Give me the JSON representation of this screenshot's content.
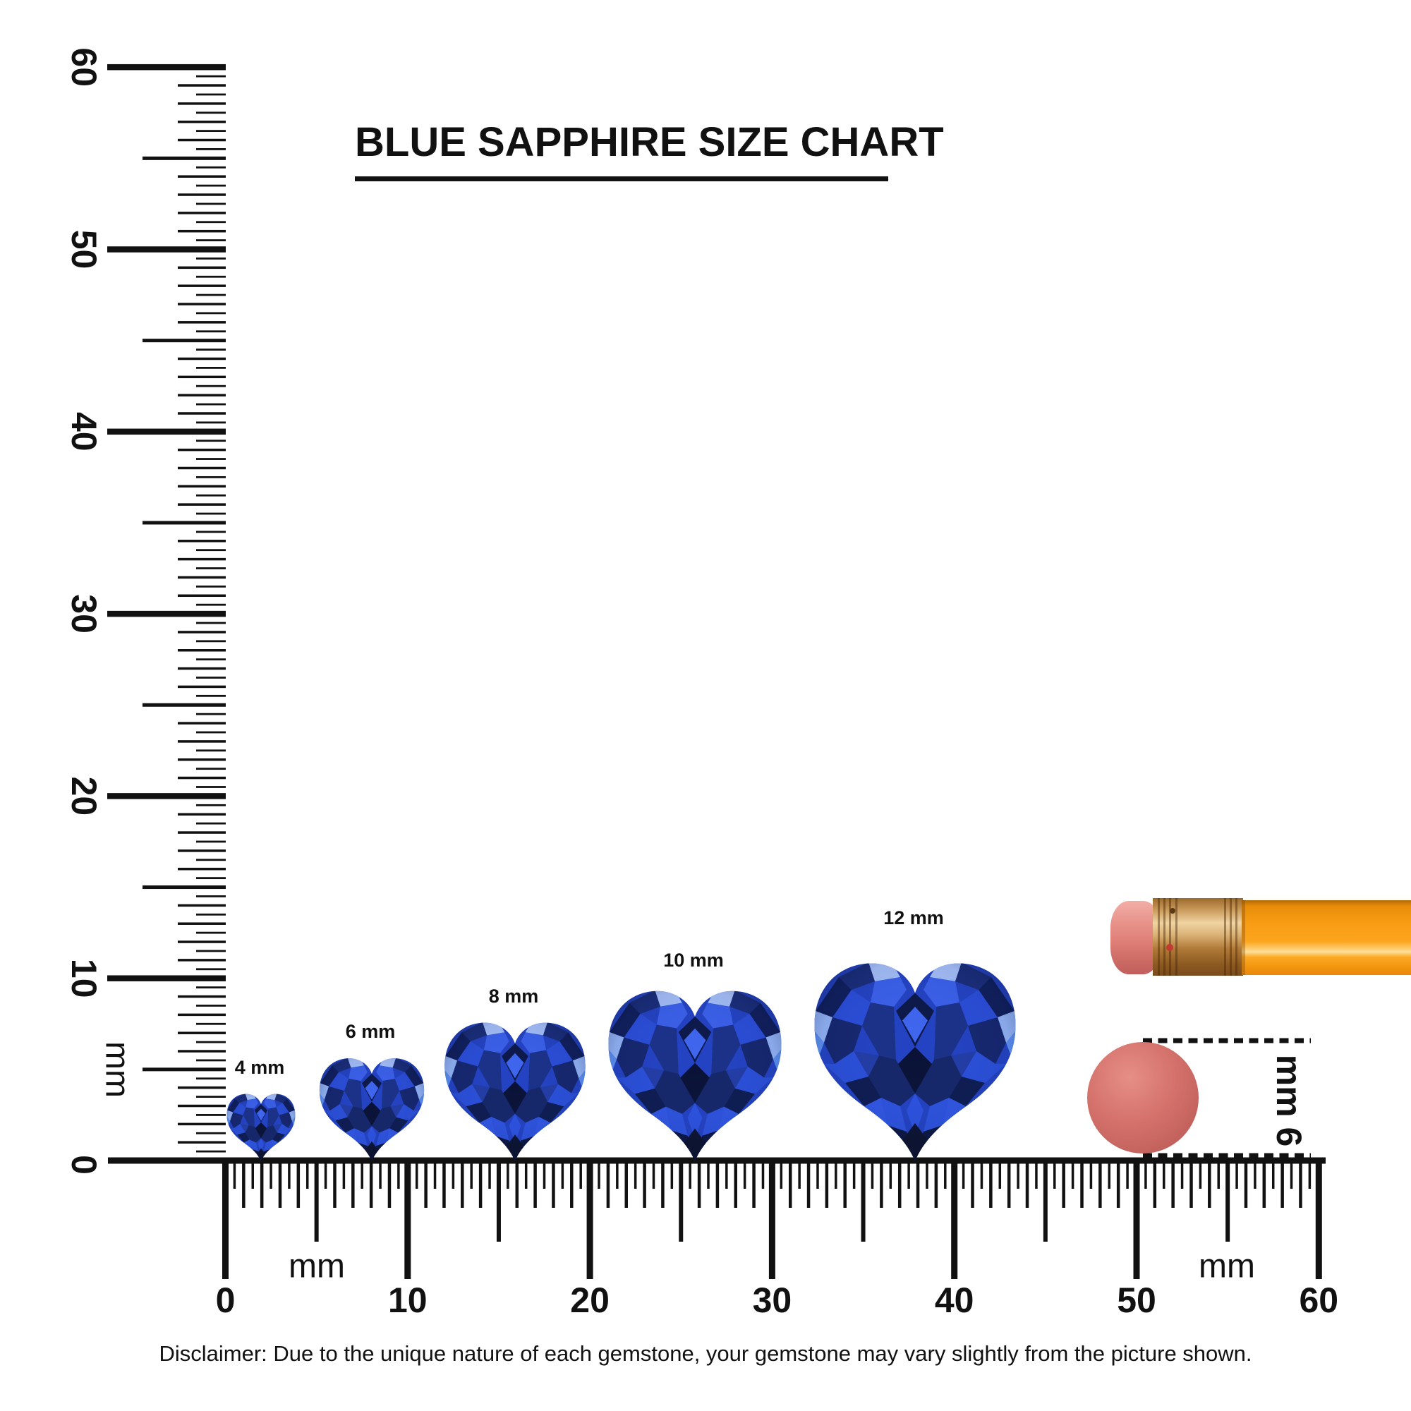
{
  "title": "BLUE SAPPHIRE SIZE CHART",
  "disclaimer": "Disclaimer: Due to the unique nature of each gemstone, your gemstone may vary slightly from the picture shown.",
  "chart_data": {
    "type": "size-comparison",
    "title": "BLUE SAPPHIRE SIZE CHART",
    "unit": "mm",
    "item": "blue sapphire, heart cut",
    "sizes_mm": [
      4,
      6,
      8,
      10,
      12
    ],
    "size_labels": [
      "4 mm",
      "6 mm",
      "8 mm",
      "10 mm",
      "12 mm"
    ],
    "vertical_ruler": {
      "min_mm": 0,
      "max_mm": 60,
      "minor_step_mm": 0.5,
      "label_step_mm": 10,
      "labels": [
        "0",
        "10",
        "20",
        "30",
        "40",
        "50",
        "60"
      ],
      "unit_label": "mm",
      "orientation": "vertical, numbers rotated 90deg clockwise"
    },
    "horizontal_ruler": {
      "min_mm": 0,
      "max_mm": 60,
      "minor_step_mm": 0.5,
      "label_step_mm": 10,
      "labels": [
        "0",
        "10",
        "20",
        "30",
        "40",
        "50",
        "60"
      ],
      "unit_labels": [
        "mm",
        "mm"
      ]
    },
    "reference_objects": [
      {
        "name": "pencil with ferrule and eraser end"
      },
      {
        "name": "round pencil eraser",
        "dimension_label": "6 mm",
        "diameter_mm": 6
      }
    ]
  },
  "colors": {
    "ink": "#111111",
    "sapphire_base": "#2443c2",
    "sapphire_dark": "#0a1236",
    "sapphire_bright": "#3f66ee",
    "sapphire_pale": "#a6c0f8",
    "pencil_body_orange": "#f89c13",
    "pencil_ferrule_gold": "#d9b075",
    "pencil_eraser_pink": "#df7f78",
    "round_eraser_red": "#d4716b"
  }
}
